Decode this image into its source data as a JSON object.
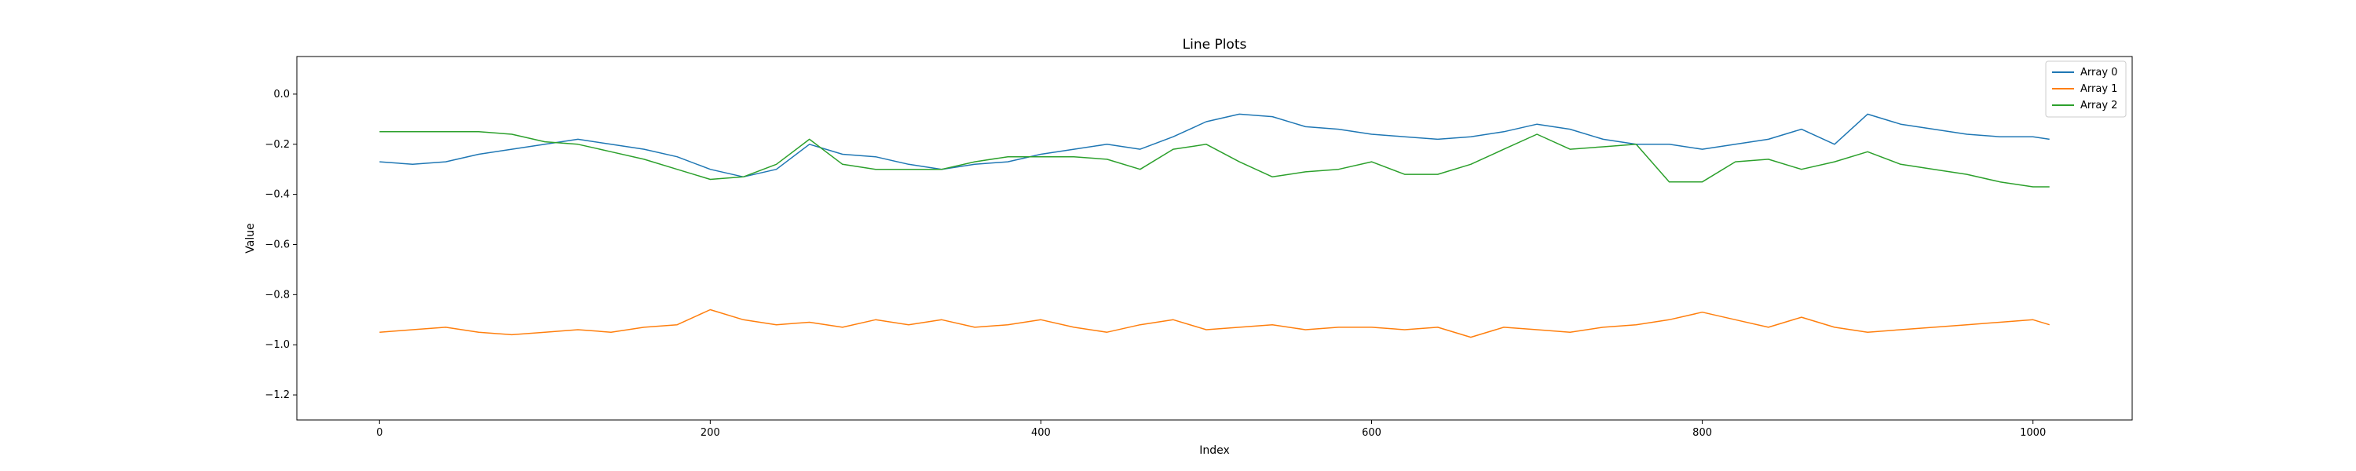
{
  "chart_data": {
    "type": "line",
    "title": "Line Plots",
    "xlabel": "Index",
    "ylabel": "Value",
    "xlim": [
      -50,
      1060
    ],
    "ylim": [
      -1.3,
      0.15
    ],
    "xticks": [
      0,
      200,
      400,
      600,
      800,
      1000
    ],
    "yticks": [
      0.0,
      -0.2,
      -0.4,
      -0.6,
      -0.8,
      -1.0,
      -1.2
    ],
    "xtick_labels": [
      "0",
      "200",
      "400",
      "600",
      "800",
      "1000"
    ],
    "ytick_labels": [
      "0.0",
      "−0.2",
      "−0.4",
      "−0.6",
      "−0.8",
      "−1.0",
      "−1.2"
    ],
    "grid": false,
    "legend_position": "top-right",
    "x": [
      0,
      20,
      40,
      60,
      80,
      100,
      120,
      140,
      160,
      180,
      200,
      220,
      240,
      260,
      280,
      300,
      320,
      340,
      360,
      380,
      400,
      420,
      440,
      460,
      480,
      500,
      520,
      540,
      560,
      580,
      600,
      620,
      640,
      660,
      680,
      700,
      720,
      740,
      760,
      780,
      800,
      820,
      840,
      860,
      880,
      900,
      920,
      940,
      960,
      980,
      1000,
      1010
    ],
    "series": [
      {
        "name": "Array 0",
        "color": "#1f77b4",
        "values": [
          -0.27,
          -0.28,
          -0.27,
          -0.24,
          -0.22,
          -0.2,
          -0.18,
          -0.2,
          -0.22,
          -0.25,
          -0.3,
          -0.33,
          -0.3,
          -0.2,
          -0.24,
          -0.25,
          -0.28,
          -0.3,
          -0.28,
          -0.27,
          -0.24,
          -0.22,
          -0.2,
          -0.22,
          -0.17,
          -0.11,
          -0.08,
          -0.09,
          -0.13,
          -0.14,
          -0.16,
          -0.17,
          -0.18,
          -0.17,
          -0.15,
          -0.12,
          -0.14,
          -0.18,
          -0.2,
          -0.2,
          -0.22,
          -0.2,
          -0.18,
          -0.14,
          -0.2,
          -0.08,
          -0.12,
          -0.14,
          -0.16,
          -0.17,
          -0.17,
          -0.18
        ]
      },
      {
        "name": "Array 1",
        "color": "#ff7f0e",
        "values": [
          -0.95,
          -0.94,
          -0.93,
          -0.95,
          -0.96,
          -0.95,
          -0.94,
          -0.95,
          -0.93,
          -0.92,
          -0.86,
          -0.9,
          -0.92,
          -0.91,
          -0.93,
          -0.9,
          -0.92,
          -0.9,
          -0.93,
          -0.92,
          -0.9,
          -0.93,
          -0.95,
          -0.92,
          -0.9,
          -0.94,
          -0.93,
          -0.92,
          -0.94,
          -0.93,
          -0.93,
          -0.94,
          -0.93,
          -0.97,
          -0.93,
          -0.94,
          -0.95,
          -0.93,
          -0.92,
          -0.9,
          -0.87,
          -0.9,
          -0.93,
          -0.89,
          -0.93,
          -0.95,
          -0.94,
          -0.93,
          -0.92,
          -0.91,
          -0.9,
          -0.92
        ]
      },
      {
        "name": "Array 2",
        "color": "#2ca02c",
        "values": [
          -0.15,
          -0.15,
          -0.15,
          -0.15,
          -0.16,
          -0.19,
          -0.2,
          -0.23,
          -0.26,
          -0.3,
          -0.34,
          -0.33,
          -0.28,
          -0.18,
          -0.28,
          -0.3,
          -0.3,
          -0.3,
          -0.27,
          -0.25,
          -0.25,
          -0.25,
          -0.26,
          -0.3,
          -0.22,
          -0.2,
          -0.27,
          -0.33,
          -0.31,
          -0.3,
          -0.27,
          -0.32,
          -0.32,
          -0.28,
          -0.22,
          -0.16,
          -0.22,
          -0.21,
          -0.2,
          -0.35,
          -0.35,
          -0.27,
          -0.26,
          -0.3,
          -0.27,
          -0.23,
          -0.28,
          -0.3,
          -0.32,
          -0.35,
          -0.37,
          -0.37
        ]
      }
    ]
  }
}
